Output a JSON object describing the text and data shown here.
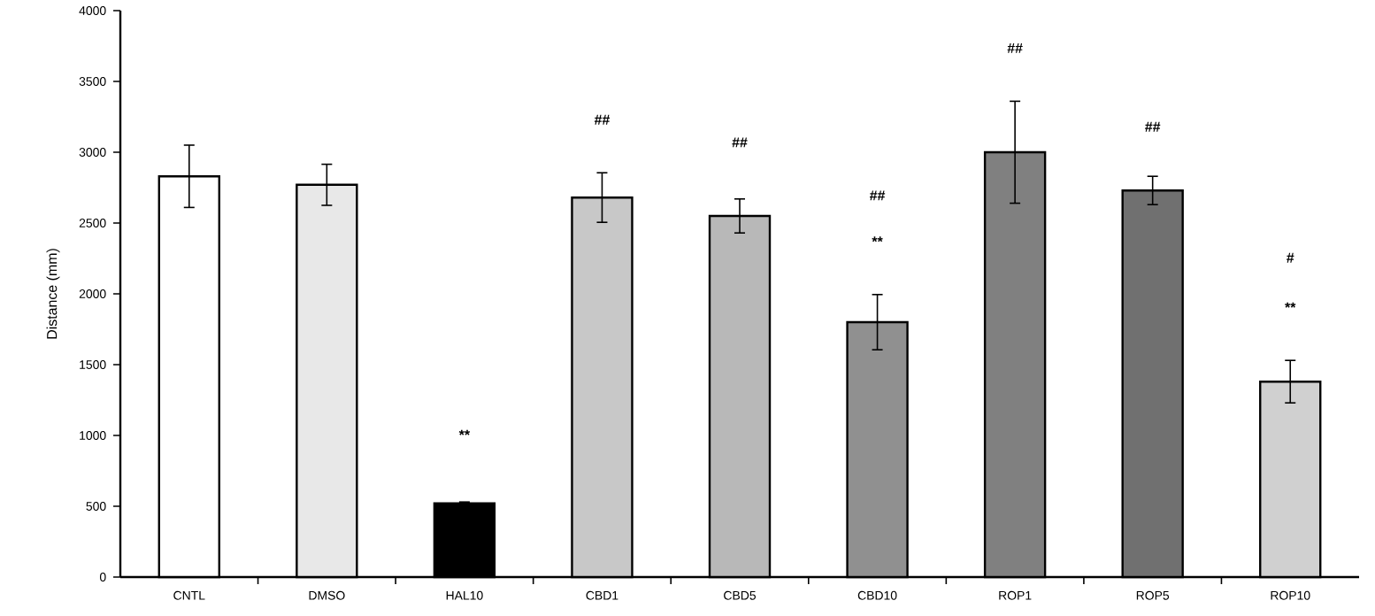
{
  "chart_data": {
    "type": "bar",
    "ylabel": "Distance (mm)",
    "categories": [
      "CNTL",
      "DMSO",
      "HAL10",
      "CBD1",
      "CBD5",
      "CBD10",
      "ROP1",
      "ROP5",
      "ROP10"
    ],
    "values": [
      2830,
      2770,
      520,
      2680,
      2550,
      1800,
      3000,
      2730,
      1380
    ],
    "errors": [
      220,
      145,
      10,
      175,
      120,
      195,
      360,
      100,
      150
    ],
    "colors": [
      "#ffffff",
      "#e8e8e8",
      "#000000",
      "#c8c8c8",
      "#b8b8b8",
      "#909090",
      "#808080",
      "#707070",
      "#d0d0d0"
    ],
    "ylim": [
      0,
      4000
    ],
    "yticks": [
      0,
      500,
      1000,
      1500,
      2000,
      2500,
      3000,
      3500,
      4000
    ],
    "annotations": [
      "**",
      "##",
      "##",
      "##",
      "**",
      "##",
      "##",
      "#",
      "**"
    ]
  }
}
